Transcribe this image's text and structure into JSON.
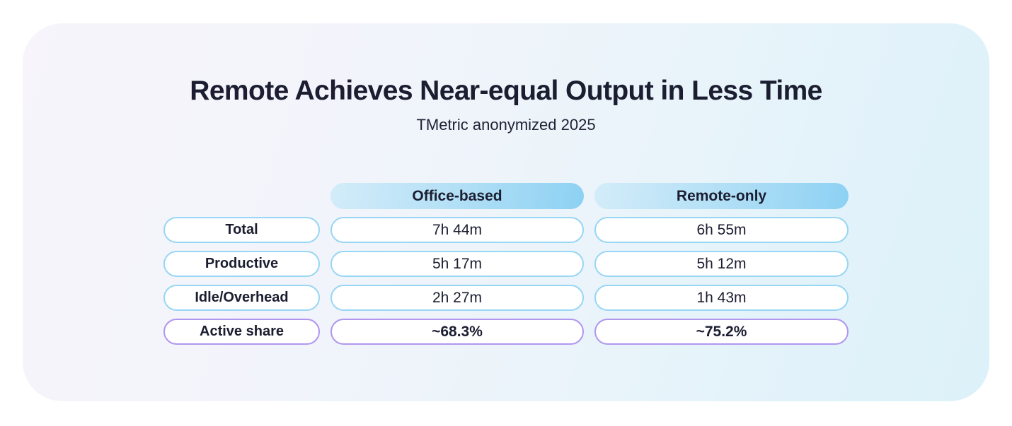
{
  "chart_data": {
    "type": "table",
    "title": "Remote Achieves Near-equal Output in Less Time",
    "subtitle": "TMetric anonymized 2025",
    "columns": [
      "",
      "Office-based",
      "Remote-only"
    ],
    "rows": [
      [
        "Total",
        "7h 44m",
        "6h 55m"
      ],
      [
        "Productive",
        "5h 17m",
        "5h 12m"
      ],
      [
        "Idle/Overhead",
        "2h 27m",
        "1h 43m"
      ],
      [
        "Active share",
        "~68.3%",
        "~75.2%"
      ]
    ],
    "row_accents": [
      "blue",
      "blue",
      "blue",
      "purple"
    ],
    "legend_position": "none",
    "grid": false
  },
  "colors": {
    "text": "#1b1d30",
    "card_gradient_start": "#f7f4fb",
    "card_gradient_end": "#dcf1f9",
    "header_gradient_start": "#d3ecf9",
    "header_gradient_end": "#8dd1f3",
    "pill_border_blue": "#97d6f4",
    "pill_border_purple": "#b096ee",
    "pill_background": "#ffffff"
  }
}
